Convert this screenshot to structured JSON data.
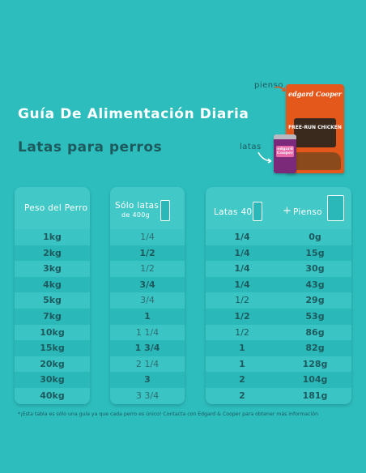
{
  "header": {
    "title": "Guía De Alimentación Diaria",
    "subtitle": "Latas para perros"
  },
  "product": {
    "pienso_label": "pienso",
    "latas_label": "latas",
    "bag_brand": "edgard Cooper",
    "bag_badge": "FREE-RUN CHICKEN",
    "can_brand": "edgard Cooper"
  },
  "columns": {
    "weight_header": "Peso del Perro",
    "cans_only_header": "Sólo latas",
    "cans_only_sub": "de 400g",
    "mix_cans_header": "Latas  400g",
    "mix_plus": "+",
    "mix_food_header": "Pienso"
  },
  "rows": [
    {
      "weight": "1kg",
      "cans_only": "1/4",
      "mix_cans": "1/4",
      "mix_food": "0g"
    },
    {
      "weight": "2kg",
      "cans_only": "1/2",
      "mix_cans": "1/4",
      "mix_food": "15g"
    },
    {
      "weight": "3kg",
      "cans_only": "1/2",
      "mix_cans": "1/4",
      "mix_food": "30g"
    },
    {
      "weight": "4kg",
      "cans_only": "3/4",
      "mix_cans": "1/4",
      "mix_food": "43g"
    },
    {
      "weight": "5kg",
      "cans_only": "3/4",
      "mix_cans": "1/2",
      "mix_food": "29g"
    },
    {
      "weight": "7kg",
      "cans_only": "1",
      "mix_cans": "1/2",
      "mix_food": "53g"
    },
    {
      "weight": "10kg",
      "cans_only": "1 1/4",
      "mix_cans": "1/2",
      "mix_food": "86g"
    },
    {
      "weight": "15kg",
      "cans_only": "1 3/4",
      "mix_cans": "1",
      "mix_food": "82g"
    },
    {
      "weight": "20kg",
      "cans_only": "2 1/4",
      "mix_cans": "1",
      "mix_food": "128g"
    },
    {
      "weight": "30kg",
      "cans_only": "3",
      "mix_cans": "2",
      "mix_food": "104g"
    },
    {
      "weight": "40kg",
      "cans_only": "3 3/4",
      "mix_cans": "2",
      "mix_food": "181g"
    }
  ],
  "footnote": "*¡Esta tabla es sólo una guía ya que cada perro es único! Contacta con Edgard & Cooper para obtener más información",
  "colors": {
    "background": "#2dbdbd",
    "dark_text": "#1d5a5e",
    "accent_orange": "#e5581c"
  }
}
